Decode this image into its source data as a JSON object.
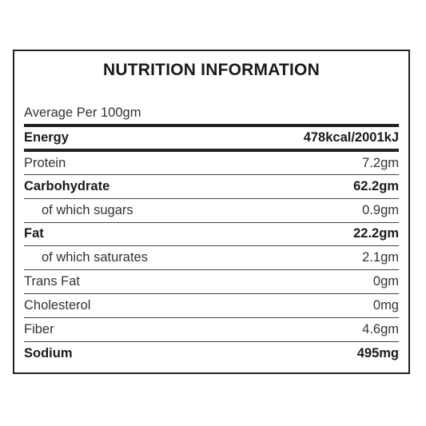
{
  "title": "NUTRITION INFORMATION",
  "subtitle": "Average Per 100gm",
  "rows": [
    {
      "label": "Energy",
      "value": "478kcal/2001kJ"
    },
    {
      "label": "Protein",
      "value": "7.2gm"
    },
    {
      "label": "Carbohydrate",
      "value": "62.2gm"
    },
    {
      "label": "of which sugars",
      "value": "0.9gm"
    },
    {
      "label": "Fat",
      "value": "22.2gm"
    },
    {
      "label": "of which saturates",
      "value": "2.1gm"
    },
    {
      "label": "Trans Fat",
      "value": "0gm"
    },
    {
      "label": "Cholesterol",
      "value": "0mg"
    },
    {
      "label": "Fiber",
      "value": "4.6gm"
    },
    {
      "label": "Sodium",
      "value": "495mg"
    }
  ]
}
